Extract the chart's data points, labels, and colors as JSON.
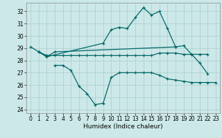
{
  "title": "",
  "xlabel": "Humidex (Indice chaleur)",
  "bg_color": "#cce8e8",
  "grid_color": "#aacccc",
  "line_color": "#006666",
  "x": [
    0,
    1,
    2,
    3,
    4,
    5,
    6,
    7,
    8,
    9,
    10,
    11,
    12,
    13,
    14,
    15,
    16,
    17,
    18,
    19,
    20,
    21,
    22,
    23
  ],
  "line1": [
    29.1,
    28.7,
    28.3,
    null,
    null,
    null,
    null,
    null,
    null,
    29.4,
    30.5,
    30.7,
    30.6,
    31.5,
    32.3,
    31.7,
    32.0,
    30.6,
    29.1,
    null,
    null,
    null,
    null,
    null
  ],
  "line2": [
    null,
    28.7,
    28.3,
    28.7,
    null,
    null,
    null,
    null,
    null,
    null,
    null,
    null,
    null,
    null,
    null,
    null,
    null,
    null,
    29.1,
    29.2,
    28.5,
    27.8,
    26.9,
    null
  ],
  "line3": [
    null,
    28.7,
    28.4,
    28.4,
    28.4,
    28.4,
    28.4,
    28.4,
    28.4,
    28.4,
    28.4,
    28.4,
    28.4,
    28.4,
    28.4,
    28.4,
    28.6,
    28.6,
    28.6,
    28.5,
    28.5,
    28.5,
    28.5,
    null
  ],
  "line4": [
    null,
    null,
    null,
    27.6,
    27.6,
    27.2,
    25.9,
    25.3,
    24.4,
    24.5,
    26.6,
    27.0,
    27.0,
    27.0,
    27.0,
    27.0,
    26.8,
    26.5,
    26.4,
    26.3,
    26.2,
    26.2,
    26.2,
    26.2
  ],
  "ylim": [
    23.7,
    32.7
  ],
  "yticks": [
    24,
    25,
    26,
    27,
    28,
    29,
    30,
    31,
    32
  ],
  "xticks": [
    0,
    1,
    2,
    3,
    4,
    5,
    6,
    7,
    8,
    9,
    10,
    11,
    12,
    13,
    14,
    15,
    16,
    17,
    18,
    19,
    20,
    21,
    22,
    23
  ],
  "marker": "+",
  "markersize": 3,
  "linewidth": 0.9,
  "xlabel_fontsize": 6.5,
  "tick_fontsize": 5.5
}
